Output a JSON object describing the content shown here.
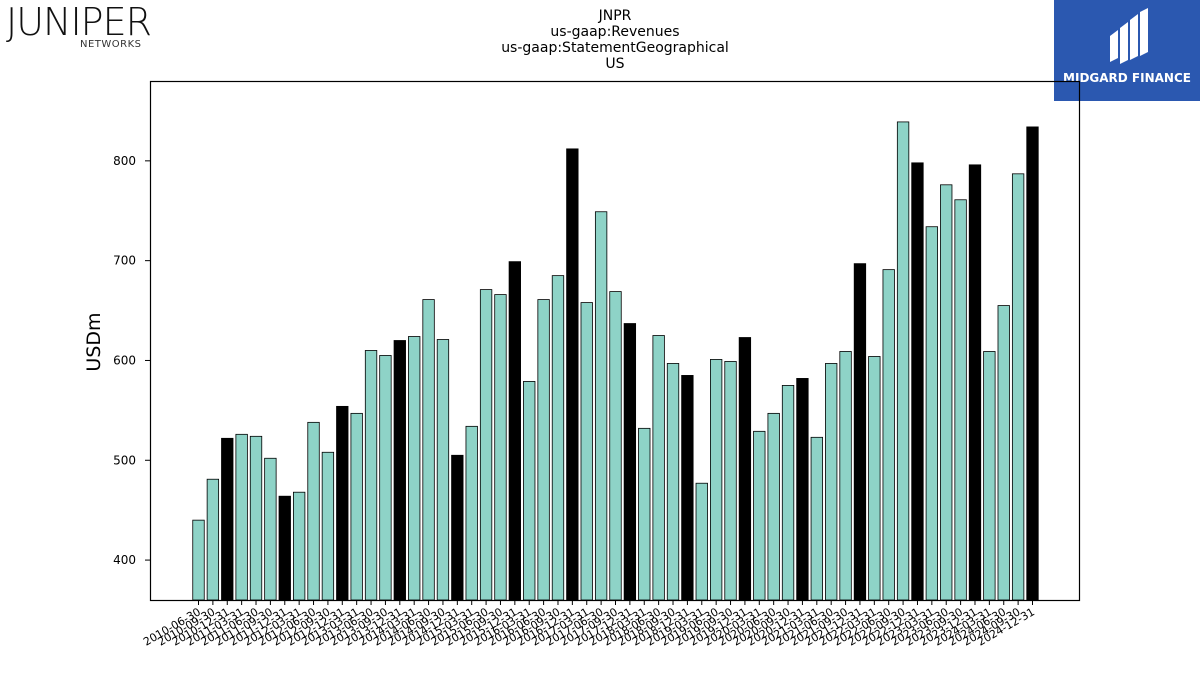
{
  "brand_left": {
    "name_main": "JUNIPER",
    "name_sub": "NETWORKS"
  },
  "brand_right": {
    "name": "MIDGARD FINANCE"
  },
  "colors": {
    "normal_bar": "#8ed3c7",
    "highlight_bar": "#000000",
    "bar_edge": "#000000"
  },
  "chart_data": {
    "type": "bar",
    "title_lines": [
      "JNPR",
      "us-gaap:Revenues",
      "us-gaap:StatementGeographical",
      "US"
    ],
    "xlabel": "",
    "ylabel": "USDm",
    "ylim": [
      360,
      880
    ],
    "yticks": [
      400,
      500,
      600,
      700,
      800
    ],
    "grid": false,
    "categories": [
      "2010-06-30",
      "2010-09-30",
      "2010-12-31",
      "2011-03-31",
      "2011-06-30",
      "2011-09-30",
      "2011-12-31",
      "2012-03-31",
      "2012-06-30",
      "2012-09-30",
      "2012-12-31",
      "2013-03-31",
      "2013-06-30",
      "2013-09-30",
      "2013-12-31",
      "2014-03-31",
      "2014-06-30",
      "2014-09-30",
      "2014-12-31",
      "2015-03-31",
      "2015-06-30",
      "2015-09-30",
      "2015-12-31",
      "2016-03-31",
      "2016-06-30",
      "2016-09-30",
      "2016-12-31",
      "2017-03-31",
      "2017-06-30",
      "2017-09-30",
      "2017-12-31",
      "2018-03-31",
      "2018-06-30",
      "2018-09-30",
      "2018-12-31",
      "2019-03-31",
      "2019-06-30",
      "2019-09-30",
      "2019-12-31",
      "2020-03-31",
      "2020-06-30",
      "2020-09-30",
      "2020-12-31",
      "2021-03-31",
      "2021-06-30",
      "2021-09-30",
      "2021-12-31",
      "2022-03-31",
      "2022-06-30",
      "2022-09-30",
      "2022-12-31",
      "2023-03-31",
      "2023-06-30",
      "2023-09-30",
      "2023-12-31",
      "2024-03-31",
      "2024-06-30",
      "2024-09-30",
      "2024-12-31"
    ],
    "values": [
      440,
      481,
      522,
      526,
      524,
      502,
      464,
      468,
      538,
      508,
      554,
      547,
      610,
      605,
      620,
      624,
      661,
      621,
      505,
      534,
      671,
      666,
      699,
      579,
      661,
      685,
      812,
      658,
      749,
      669,
      637,
      532,
      625,
      597,
      585,
      477,
      601,
      599,
      623,
      529,
      547,
      575,
      582,
      523,
      597,
      609,
      697,
      604,
      691,
      839,
      798,
      734,
      776,
      761,
      796,
      609,
      655,
      787,
      834
    ],
    "highlight": [
      false,
      false,
      true,
      false,
      false,
      false,
      true,
      false,
      false,
      false,
      true,
      false,
      false,
      false,
      true,
      false,
      false,
      false,
      true,
      false,
      false,
      false,
      true,
      false,
      false,
      false,
      true,
      false,
      false,
      false,
      true,
      false,
      false,
      false,
      true,
      false,
      false,
      false,
      true,
      false,
      false,
      false,
      true,
      false,
      false,
      false,
      true,
      false,
      false,
      false,
      true,
      false,
      false,
      false,
      true,
      false,
      false,
      false,
      true
    ]
  }
}
